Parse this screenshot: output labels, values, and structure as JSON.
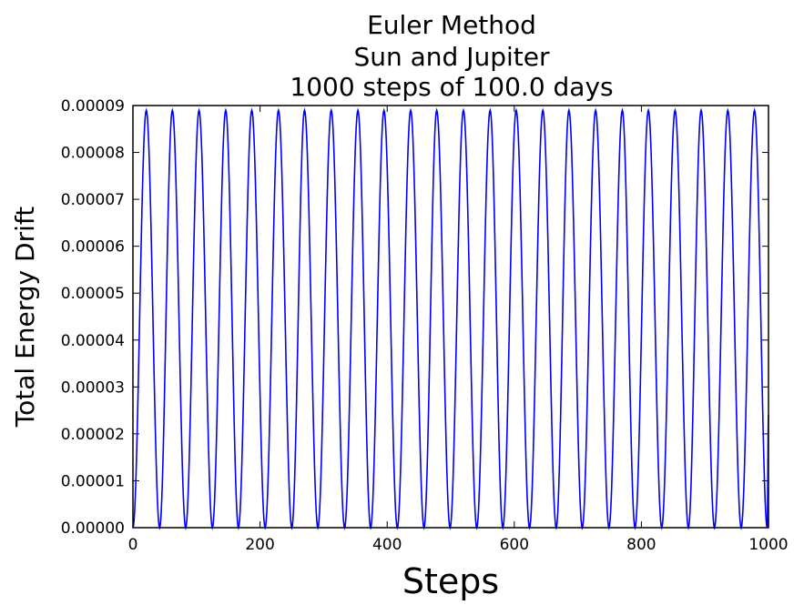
{
  "chart_data": {
    "type": "line",
    "title": [
      "Euler Method",
      "Sun and Jupiter",
      "1000 steps of 100.0 days"
    ],
    "xlabel": "Steps",
    "ylabel": "Total Energy Drift",
    "xlim": [
      0,
      1000
    ],
    "ylim": [
      0,
      9e-05
    ],
    "xticks": [
      0,
      200,
      400,
      600,
      800,
      1000
    ],
    "xtick_labels": [
      "0",
      "200",
      "400",
      "600",
      "800",
      "1000"
    ],
    "yticks": [
      0,
      1e-05,
      2e-05,
      3e-05,
      4e-05,
      5e-05,
      6e-05,
      7e-05,
      8e-05,
      9e-05
    ],
    "ytick_labels": [
      "0.00000",
      "0.00001",
      "0.00002",
      "0.00003",
      "0.00004",
      "0.00005",
      "0.00006",
      "0.00007",
      "0.00008",
      "0.00009"
    ],
    "grid": false,
    "series": [
      {
        "color": "#0000ff",
        "x": [
          0,
          21,
          42,
          62,
          83,
          104,
          125,
          146,
          166,
          187,
          208,
          229,
          250,
          270,
          291,
          312,
          333,
          354,
          374,
          395,
          416,
          437,
          458,
          478,
          499,
          520,
          541,
          562,
          582,
          603,
          624,
          645,
          666,
          686,
          707,
          728,
          749,
          770,
          790,
          811,
          832,
          853,
          874,
          894,
          915,
          936,
          957,
          978,
          998,
          1000
        ],
        "y": [
          0,
          8.9e-05,
          0,
          8.9e-05,
          0,
          8.9e-05,
          0,
          8.9e-05,
          0,
          8.9e-05,
          0,
          8.9e-05,
          0,
          8.9e-05,
          0,
          8.9e-05,
          0,
          8.9e-05,
          0,
          8.9e-05,
          0,
          8.9e-05,
          0,
          8.9e-05,
          0,
          8.9e-05,
          0,
          8.9e-05,
          0,
          8.9e-05,
          0,
          8.9e-05,
          0,
          8.9e-05,
          0,
          8.9e-05,
          0,
          8.9e-05,
          0,
          8.9e-05,
          0,
          8.9e-05,
          0,
          8.9e-05,
          0,
          8.9e-05,
          0,
          8.9e-05,
          0,
          2.4e-05
        ]
      }
    ]
  }
}
